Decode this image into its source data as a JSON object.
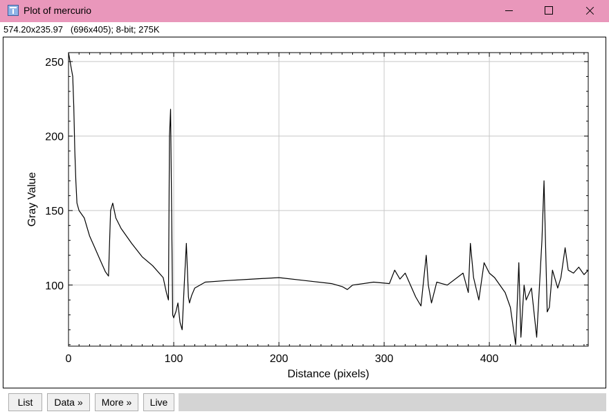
{
  "window": {
    "title": "Plot of mercurio",
    "icon": "imagej-app-icon"
  },
  "info_line": "574.20x235.97   (696x405); 8-bit; 275K",
  "buttons": {
    "list": "List",
    "data": "Data »",
    "more": "More »",
    "live": "Live"
  },
  "chart_data": {
    "type": "line",
    "title": "",
    "xlabel": "Distance (pixels)",
    "ylabel": "Gray Value",
    "xlim": [
      0,
      494
    ],
    "ylim": [
      59,
      256
    ],
    "xticks": [
      0,
      100,
      200,
      300,
      400
    ],
    "yticks": [
      100,
      150,
      200,
      250
    ],
    "grid": true,
    "line_color": "#000000",
    "series": [
      {
        "x": [
          0,
          2,
          4,
          5,
          6,
          7,
          8,
          10,
          15,
          20,
          25,
          30,
          35,
          38,
          40,
          42,
          45,
          50,
          60,
          70,
          80,
          90,
          93,
          95,
          96,
          97,
          98,
          99,
          100,
          102,
          104,
          106,
          108,
          110,
          112,
          113,
          114,
          115,
          117,
          120,
          130,
          150,
          175,
          200,
          225,
          250,
          260,
          265,
          270,
          290,
          305,
          310,
          315,
          320,
          330,
          335,
          340,
          342,
          345,
          350,
          360,
          375,
          380,
          382,
          385,
          390,
          395,
          400,
          405,
          415,
          420,
          425,
          428,
          430,
          433,
          435,
          440,
          445,
          450,
          452,
          455,
          457,
          460,
          465,
          468,
          472,
          475,
          480,
          485,
          490,
          494
        ],
        "y": [
          256,
          248,
          240,
          220,
          190,
          170,
          155,
          150,
          145,
          133,
          125,
          117,
          109,
          106,
          150,
          155,
          145,
          138,
          128,
          119,
          113,
          105,
          95,
          90,
          200,
          218,
          150,
          80,
          78,
          82,
          88,
          75,
          70,
          100,
          128,
          110,
          92,
          88,
          93,
          98,
          102,
          103,
          104,
          105,
          103,
          101,
          99,
          97,
          100,
          102,
          101,
          110,
          104,
          108,
          92,
          86,
          120,
          100,
          88,
          102,
          100,
          108,
          95,
          128,
          105,
          90,
          115,
          108,
          105,
          95,
          85,
          60,
          115,
          65,
          100,
          90,
          98,
          65,
          130,
          170,
          82,
          85,
          110,
          98,
          105,
          125,
          110,
          108,
          112,
          107,
          110
        ]
      }
    ]
  }
}
